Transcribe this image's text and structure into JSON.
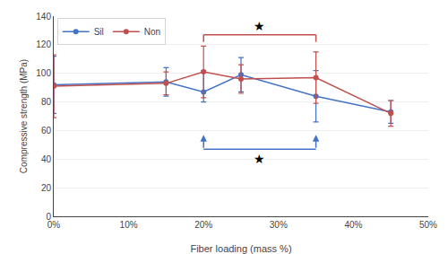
{
  "chart_data": {
    "type": "line",
    "x": [
      0,
      15,
      20,
      25,
      35,
      45
    ],
    "series": [
      {
        "name": "Sil",
        "color": "#4472C4",
        "marker": "circle",
        "values": [
          92,
          94,
          87,
          99,
          84,
          73
        ],
        "err_lo": [
          20,
          10,
          7,
          12,
          18,
          8
        ],
        "err_hi": [
          20,
          10,
          15,
          12,
          18,
          8
        ]
      },
      {
        "name": "Non",
        "color": "#C0504D",
        "marker": "circle",
        "values": [
          91,
          93,
          101,
          96,
          97,
          72
        ],
        "err_lo": [
          22,
          8,
          18,
          10,
          18,
          9
        ],
        "err_hi": [
          22,
          8,
          18,
          10,
          18,
          9
        ]
      }
    ],
    "xlabel": "Fiber loading (mass %)",
    "ylabel": "Compressive strength (MPa)",
    "xlim": [
      0,
      50
    ],
    "ylim": [
      0,
      140
    ],
    "xticks": [
      {
        "value": 0,
        "label": "0%"
      },
      {
        "value": 10,
        "label": "10%"
      },
      {
        "value": 20,
        "label": "20%"
      },
      {
        "value": 30,
        "label": "30%"
      },
      {
        "value": 40,
        "label": "40%"
      },
      {
        "value": 50,
        "label": "50%"
      }
    ],
    "yticks": [
      0,
      20,
      40,
      60,
      80,
      100,
      120,
      140
    ],
    "grid": true,
    "legend": "upper left",
    "brackets": [
      {
        "style": "drop",
        "x1": 20,
        "x2": 35,
        "y": 127,
        "drop": 5,
        "color": "#C0504D"
      },
      {
        "style": "arrows",
        "x1": 20,
        "x2": 35,
        "y": 47,
        "rise": 10,
        "color": "#4472C4"
      }
    ],
    "annotations": [
      {
        "text": "★",
        "x": 27.5,
        "y": 133
      },
      {
        "text": "★",
        "x": 27.5,
        "y": 40
      }
    ]
  }
}
